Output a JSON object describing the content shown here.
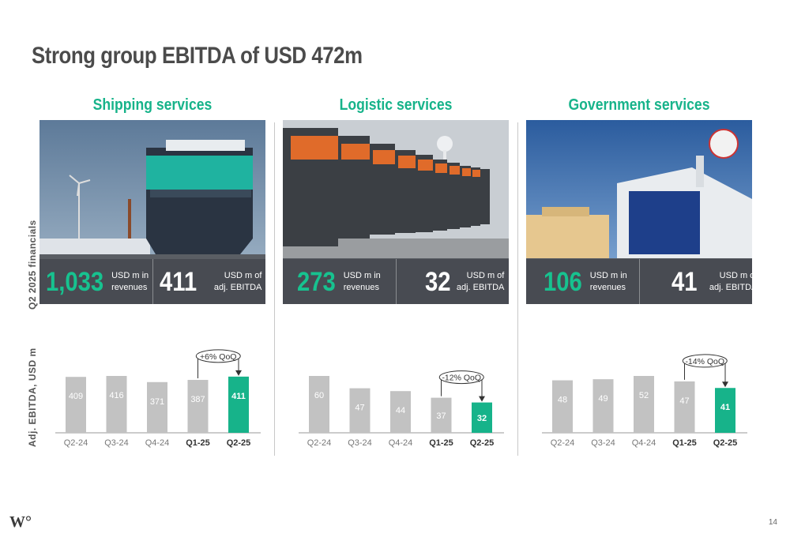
{
  "title": "Strong group EBITDA of USD 472m",
  "side_labels": {
    "financials": "Q2 2025 financials",
    "ebitda": "Adj. EBITDA, USD m"
  },
  "columns": [
    {
      "heading": "Shipping services",
      "revenue_value": "1,033",
      "revenue_unit_line1": "USD m in",
      "revenue_unit_line2": "revenues",
      "ebitda_value": "411",
      "ebitda_unit_line1": "USD m of",
      "ebitda_unit_line2": "adj. EBITDA",
      "qoq_label": "+6% QoQ"
    },
    {
      "heading": "Logistic services",
      "revenue_value": "273",
      "revenue_unit_line1": "USD m in",
      "revenue_unit_line2": "revenues",
      "ebitda_value": "32",
      "ebitda_unit_line1": "USD m of",
      "ebitda_unit_line2": "adj. EBITDA",
      "qoq_label": "-12% QoQ"
    },
    {
      "heading": "Government services",
      "revenue_value": "106",
      "revenue_unit_line1": "USD m in",
      "revenue_unit_line2": "revenues",
      "ebitda_value": "41",
      "ebitda_unit_line1": "USD m of",
      "ebitda_unit_line2": "adj. EBITDA",
      "qoq_label": "-14% QoQ"
    }
  ],
  "chart_data": [
    {
      "type": "bar",
      "categories": [
        "Q2-24",
        "Q3-24",
        "Q4-24",
        "Q1-25",
        "Q2-25"
      ],
      "values": [
        409,
        416,
        371,
        387,
        411
      ],
      "highlight_index": 4,
      "bold_categories": [
        3,
        4
      ],
      "annotation": "+6% QoQ",
      "colors": {
        "bar": "#c2c2c2",
        "highlight": "#17b38a"
      }
    },
    {
      "type": "bar",
      "categories": [
        "Q2-24",
        "Q3-24",
        "Q4-24",
        "Q1-25",
        "Q2-25"
      ],
      "values": [
        60,
        47,
        44,
        37,
        32
      ],
      "highlight_index": 4,
      "bold_categories": [
        3,
        4
      ],
      "annotation": "-12% QoQ",
      "colors": {
        "bar": "#c2c2c2",
        "highlight": "#17b38a"
      }
    },
    {
      "type": "bar",
      "categories": [
        "Q2-24",
        "Q3-24",
        "Q4-24",
        "Q1-25",
        "Q2-25"
      ],
      "values": [
        48,
        49,
        52,
        47,
        41
      ],
      "highlight_index": 4,
      "bold_categories": [
        3,
        4
      ],
      "annotation": "-14% QoQ",
      "colors": {
        "bar": "#c2c2c2",
        "highlight": "#17b38a"
      }
    }
  ],
  "logo_text": "W°",
  "page_number": "14"
}
